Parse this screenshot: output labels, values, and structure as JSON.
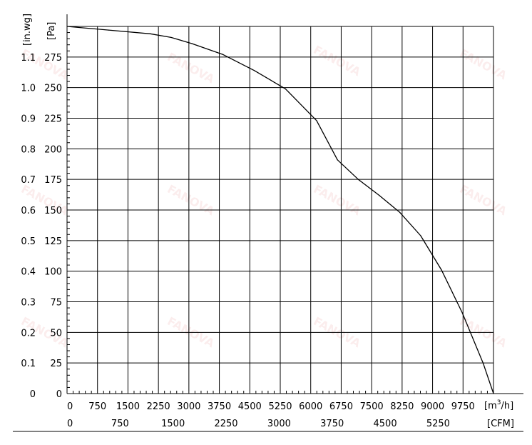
{
  "chart_data": {
    "type": "line",
    "title": "",
    "watermark": "FANOVA",
    "x_primary": {
      "unit": "[m³/h]",
      "unit_base": "[m",
      "unit_sup": "3",
      "unit_tail": "/h]",
      "range": [
        0,
        10250
      ],
      "ticks": [
        0,
        750,
        1500,
        2250,
        3000,
        3750,
        4500,
        5250,
        6000,
        6750,
        7500,
        8250,
        9000,
        9750
      ]
    },
    "x_secondary": {
      "unit": "[CFM]",
      "ticks": [
        0,
        750,
        1500,
        2250,
        3000,
        3750,
        4500,
        5250
      ]
    },
    "y_primary": {
      "unit": "[Pa]",
      "range": [
        0,
        300
      ],
      "ticks": [
        0,
        25,
        50,
        75,
        100,
        125,
        150,
        175,
        200,
        225,
        250,
        275
      ]
    },
    "y_secondary": {
      "unit": "[in.wg]",
      "ticks": [
        "0",
        "0.1",
        "0.2",
        "0.3",
        "0.4",
        "0.5",
        "0.6",
        "0.7",
        "0.8",
        "0.9",
        "1.0",
        "1.1"
      ]
    },
    "grid": true,
    "series": [
      {
        "x": [
          0,
          1000,
          2000,
          2500,
          3000,
          3750,
          4500,
          5250,
          6000,
          6500,
          7000,
          7500,
          8000,
          8500,
          9000,
          9500,
          10000,
          10250
        ],
        "y": [
          300,
          297,
          294,
          291,
          286,
          277,
          264,
          249,
          223,
          191,
          175,
          162,
          148,
          129,
          101,
          66,
          25,
          0
        ]
      }
    ]
  }
}
